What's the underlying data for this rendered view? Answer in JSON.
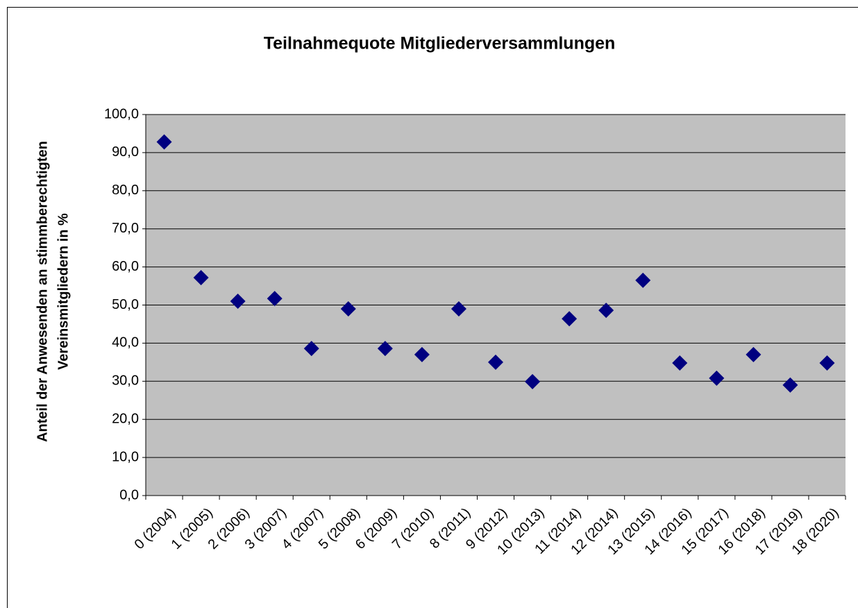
{
  "chart_data": {
    "type": "scatter",
    "title": "Teilnahmequote  Mitgliederversammlungen",
    "y_label": [
      "Anteil der Anwesenden an stimmberechtigten",
      "Vereinsmitgliedern in %"
    ],
    "categories": [
      "0 (2004)",
      "1 (2005)",
      "2 (2006)",
      "3 (2007)",
      "4 (2007)",
      "5 (2008)",
      "6 (2009)",
      "7 (2010)",
      "8 (2011)",
      "9 (2012)",
      "10 (2013)",
      "11 (2014)",
      "12 (2014)",
      "13 (2015)",
      "14 (2016)",
      "15 (2017)",
      "16 (2018)",
      "17 (2019)",
      "18 (2020)"
    ],
    "values": [
      92.8,
      57.2,
      51.0,
      51.7,
      38.6,
      49.0,
      38.6,
      37.0,
      49.0,
      35.0,
      29.9,
      46.4,
      48.6,
      56.5,
      34.8,
      30.8,
      37.0,
      29.0,
      34.8
    ],
    "color": "#000080",
    "ylim": [
      0,
      100
    ],
    "yticks": [
      {
        "value": 0,
        "label": "0,0"
      },
      {
        "value": 10,
        "label": "10,0"
      },
      {
        "value": 20,
        "label": "20,0"
      },
      {
        "value": 30,
        "label": "30,0"
      },
      {
        "value": 40,
        "label": "40,0"
      },
      {
        "value": 50,
        "label": "50,0"
      },
      {
        "value": 60,
        "label": "60,0"
      },
      {
        "value": 70,
        "label": "70,0"
      },
      {
        "value": 80,
        "label": "80,0"
      },
      {
        "value": 90,
        "label": "90,0"
      },
      {
        "value": 100,
        "label": "100,0"
      }
    ],
    "grid": true
  }
}
